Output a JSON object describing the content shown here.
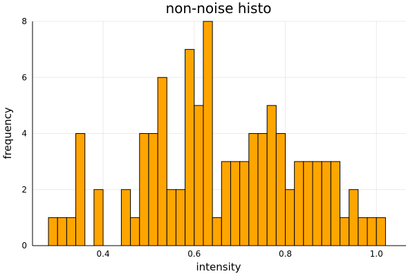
{
  "chart_data": {
    "type": "bar",
    "title": "non-noise histo",
    "xlabel": "intensity",
    "ylabel": "frequency",
    "bin_width": 0.02,
    "bins": [
      {
        "start": 0.28,
        "count": 1
      },
      {
        "start": 0.3,
        "count": 1
      },
      {
        "start": 0.32,
        "count": 1
      },
      {
        "start": 0.34,
        "count": 4
      },
      {
        "start": 0.36,
        "count": 0
      },
      {
        "start": 0.38,
        "count": 2
      },
      {
        "start": 0.4,
        "count": 0
      },
      {
        "start": 0.42,
        "count": 0
      },
      {
        "start": 0.44,
        "count": 2
      },
      {
        "start": 0.46,
        "count": 1
      },
      {
        "start": 0.48,
        "count": 4
      },
      {
        "start": 0.5,
        "count": 4
      },
      {
        "start": 0.52,
        "count": 6
      },
      {
        "start": 0.54,
        "count": 2
      },
      {
        "start": 0.56,
        "count": 2
      },
      {
        "start": 0.58,
        "count": 7
      },
      {
        "start": 0.6,
        "count": 5
      },
      {
        "start": 0.62,
        "count": 8
      },
      {
        "start": 0.64,
        "count": 1
      },
      {
        "start": 0.66,
        "count": 3
      },
      {
        "start": 0.68,
        "count": 3
      },
      {
        "start": 0.7,
        "count": 3
      },
      {
        "start": 0.72,
        "count": 4
      },
      {
        "start": 0.74,
        "count": 4
      },
      {
        "start": 0.76,
        "count": 5
      },
      {
        "start": 0.78,
        "count": 4
      },
      {
        "start": 0.8,
        "count": 2
      },
      {
        "start": 0.82,
        "count": 3
      },
      {
        "start": 0.84,
        "count": 3
      },
      {
        "start": 0.86,
        "count": 3
      },
      {
        "start": 0.88,
        "count": 3
      },
      {
        "start": 0.9,
        "count": 3
      },
      {
        "start": 0.92,
        "count": 1
      },
      {
        "start": 0.94,
        "count": 2
      },
      {
        "start": 0.96,
        "count": 1
      },
      {
        "start": 0.98,
        "count": 1
      },
      {
        "start": 1.0,
        "count": 1
      }
    ],
    "xlim": [
      0.245,
      1.065
    ],
    "ylim": [
      0,
      8
    ],
    "xticks": [
      0.4,
      0.6,
      0.8,
      1.0
    ],
    "xtick_labels": [
      "0.4",
      "0.6",
      "0.8",
      "1.0"
    ],
    "yticks": [
      0,
      2,
      4,
      6,
      8
    ],
    "ytick_labels": [
      "0",
      "2",
      "4",
      "6",
      "8"
    ],
    "grid": true,
    "legend": false,
    "bar_color": "#FFA500",
    "edge_color": "#000000"
  }
}
